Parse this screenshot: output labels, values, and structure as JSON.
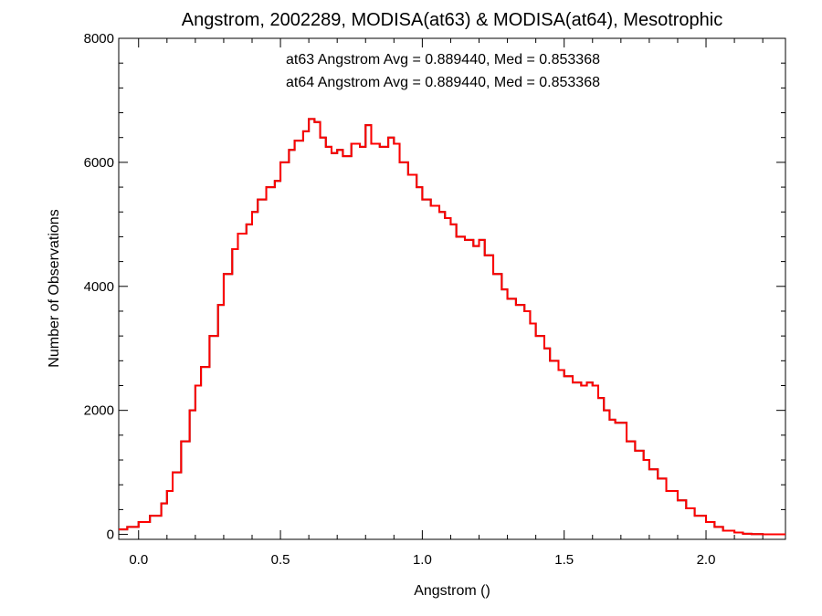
{
  "chart_data": {
    "type": "line",
    "title": "Angstrom, 2002289, MODISA(at63) & MODISA(at64), Mesotrophic",
    "xlabel": "Angstrom ()",
    "ylabel": "Number of Observations",
    "xlim": [
      -0.07,
      2.28
    ],
    "ylim": [
      -80,
      8000
    ],
    "xticks": [
      0.0,
      0.5,
      1.0,
      1.5,
      2.0
    ],
    "xtick_labels": [
      "0.0",
      "0.5",
      "1.0",
      "1.5",
      "2.0"
    ],
    "yticks": [
      0,
      2000,
      4000,
      6000,
      8000
    ],
    "ytick_labels": [
      "0",
      "2000",
      "4000",
      "6000",
      "8000"
    ],
    "grid": false,
    "step": "histogram",
    "annotations": [
      {
        "text": "at63 Angstrom Avg = 0.889440, Med = 0.853368",
        "color": "#000000"
      },
      {
        "text": "at64 Angstrom Avg = 0.889440, Med = 0.853368",
        "color": "#ff0000"
      }
    ],
    "series": [
      {
        "color": "#000000",
        "x": [
          -0.07,
          -0.04,
          0.0,
          0.04,
          0.08,
          0.1,
          0.12,
          0.15,
          0.18,
          0.2,
          0.22,
          0.25,
          0.28,
          0.3,
          0.33,
          0.35,
          0.38,
          0.4,
          0.42,
          0.45,
          0.48,
          0.5,
          0.53,
          0.55,
          0.58,
          0.6,
          0.62,
          0.64,
          0.66,
          0.68,
          0.7,
          0.72,
          0.75,
          0.78,
          0.8,
          0.82,
          0.85,
          0.88,
          0.9,
          0.92,
          0.95,
          0.98,
          1.0,
          1.03,
          1.06,
          1.08,
          1.1,
          1.12,
          1.15,
          1.18,
          1.2,
          1.22,
          1.25,
          1.28,
          1.3,
          1.33,
          1.36,
          1.38,
          1.4,
          1.43,
          1.45,
          1.48,
          1.5,
          1.53,
          1.56,
          1.58,
          1.6,
          1.62,
          1.64,
          1.66,
          1.68,
          1.7,
          1.72,
          1.75,
          1.78,
          1.8,
          1.83,
          1.86,
          1.9,
          1.93,
          1.96,
          2.0,
          2.03,
          2.06,
          2.1,
          2.13,
          2.16,
          2.2,
          2.25,
          2.28
        ],
        "y": [
          80,
          120,
          200,
          300,
          500,
          700,
          1000,
          1500,
          2000,
          2400,
          2700,
          3200,
          3700,
          4200,
          4600,
          4850,
          5000,
          5200,
          5400,
          5600,
          5700,
          6000,
          6200,
          6350,
          6500,
          6700,
          6650,
          6400,
          6250,
          6150,
          6200,
          6100,
          6300,
          6250,
          6600,
          6300,
          6250,
          6400,
          6300,
          6000,
          5800,
          5600,
          5400,
          5300,
          5200,
          5100,
          5000,
          4800,
          4750,
          4650,
          4750,
          4500,
          4200,
          3950,
          3800,
          3700,
          3600,
          3400,
          3200,
          3000,
          2800,
          2650,
          2550,
          2450,
          2400,
          2450,
          2400,
          2200,
          2000,
          1850,
          1800,
          1800,
          1500,
          1350,
          1200,
          1050,
          900,
          700,
          550,
          420,
          300,
          200,
          120,
          60,
          30,
          10,
          5,
          0,
          0,
          0
        ]
      },
      {
        "color": "#ff0000",
        "x": [
          -0.07,
          -0.04,
          0.0,
          0.04,
          0.08,
          0.1,
          0.12,
          0.15,
          0.18,
          0.2,
          0.22,
          0.25,
          0.28,
          0.3,
          0.33,
          0.35,
          0.38,
          0.4,
          0.42,
          0.45,
          0.48,
          0.5,
          0.53,
          0.55,
          0.58,
          0.6,
          0.62,
          0.64,
          0.66,
          0.68,
          0.7,
          0.72,
          0.75,
          0.78,
          0.8,
          0.82,
          0.85,
          0.88,
          0.9,
          0.92,
          0.95,
          0.98,
          1.0,
          1.03,
          1.06,
          1.08,
          1.1,
          1.12,
          1.15,
          1.18,
          1.2,
          1.22,
          1.25,
          1.28,
          1.3,
          1.33,
          1.36,
          1.38,
          1.4,
          1.43,
          1.45,
          1.48,
          1.5,
          1.53,
          1.56,
          1.58,
          1.6,
          1.62,
          1.64,
          1.66,
          1.68,
          1.7,
          1.72,
          1.75,
          1.78,
          1.8,
          1.83,
          1.86,
          1.9,
          1.93,
          1.96,
          2.0,
          2.03,
          2.06,
          2.1,
          2.13,
          2.16,
          2.2,
          2.25,
          2.28
        ],
        "y": [
          80,
          120,
          200,
          300,
          500,
          700,
          1000,
          1500,
          2000,
          2400,
          2700,
          3200,
          3700,
          4200,
          4600,
          4850,
          5000,
          5200,
          5400,
          5600,
          5700,
          6000,
          6200,
          6350,
          6500,
          6700,
          6650,
          6400,
          6250,
          6150,
          6200,
          6100,
          6300,
          6250,
          6600,
          6300,
          6250,
          6400,
          6300,
          6000,
          5800,
          5600,
          5400,
          5300,
          5200,
          5100,
          5000,
          4800,
          4750,
          4650,
          4750,
          4500,
          4200,
          3950,
          3800,
          3700,
          3600,
          3400,
          3200,
          3000,
          2800,
          2650,
          2550,
          2450,
          2400,
          2450,
          2400,
          2200,
          2000,
          1850,
          1800,
          1800,
          1500,
          1350,
          1200,
          1050,
          900,
          700,
          550,
          420,
          300,
          200,
          120,
          60,
          30,
          10,
          5,
          0,
          0,
          0
        ]
      }
    ]
  }
}
